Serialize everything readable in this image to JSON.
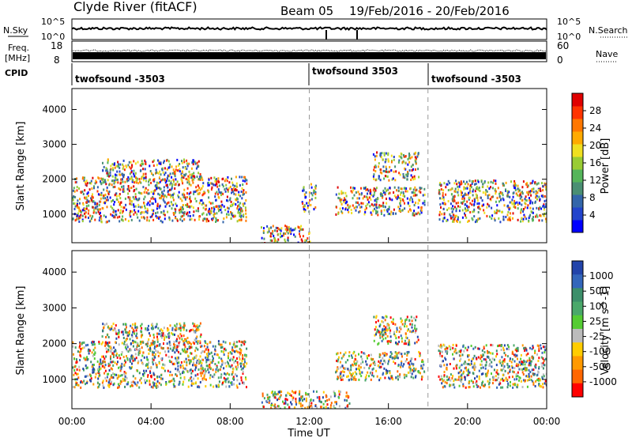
{
  "header": {
    "station": "Clyde River (fitACF)",
    "beam": "Beam 05",
    "date_range": "19/Feb/2016 - 20/Feb/2016"
  },
  "top_panels": {
    "nsky_label": "N.Sky",
    "nsearch_label": "N.Search",
    "freq_label_1": "Freq.",
    "freq_label_2": "[MHz]",
    "nave_label": "Nave",
    "cpid_label": "CPID",
    "noise_left_ticks": [
      "10^5",
      "10^0"
    ],
    "noise_right_ticks": [
      "10^5",
      "10^0"
    ],
    "freq_ticks": [
      "18",
      "8"
    ],
    "nave_ticks": [
      "60",
      "0"
    ],
    "cpid_segments": [
      {
        "label": "twofsound -3503",
        "start_hour": 0
      },
      {
        "label": "twofsound 3503",
        "start_hour": 12
      },
      {
        "label": "twofsound -3503",
        "start_hour": 18
      }
    ]
  },
  "chart_data": [
    {
      "type": "heatmap",
      "title": "Power",
      "ylabel": "Slant Range [km]",
      "xlabel": "",
      "ylim": [
        180,
        4600
      ],
      "xlim_hours": [
        0,
        24
      ],
      "y_ticks": [
        1000,
        2000,
        3000,
        4000
      ],
      "colorbar_label": "Power [dB]",
      "colorbar_ticks": [
        "4",
        "8",
        "12",
        "16",
        "20",
        "24",
        "28"
      ],
      "colorbar_colors": [
        "#0000ff",
        "#2244cc",
        "#3366aa",
        "#4a8f73",
        "#55b55a",
        "#99cc33",
        "#f0e020",
        "#ffaa00",
        "#ff7700",
        "#ff3300",
        "#e00000"
      ],
      "scatter_regions": [
        {
          "x": [
            0.0,
            8.8
          ],
          "y": [
            800,
            2100
          ]
        },
        {
          "x": [
            1.5,
            6.5
          ],
          "y": [
            2000,
            2600
          ]
        },
        {
          "x": [
            11.6,
            12.3
          ],
          "y": [
            1100,
            1900
          ]
        },
        {
          "x": [
            13.3,
            17.8
          ],
          "y": [
            1000,
            1800
          ]
        },
        {
          "x": [
            15.2,
            17.5
          ],
          "y": [
            2000,
            2800
          ]
        },
        {
          "x": [
            18.5,
            24.0
          ],
          "y": [
            800,
            2000
          ]
        },
        {
          "x": [
            9.5,
            12.0
          ],
          "y": [
            180,
            700
          ]
        }
      ]
    },
    {
      "type": "heatmap",
      "title": "Velocity",
      "ylabel": "Slant Range [km]",
      "xlabel": "Time UT",
      "ylim": [
        180,
        4600
      ],
      "xlim_hours": [
        0,
        24
      ],
      "y_ticks": [
        1000,
        2000,
        3000,
        4000
      ],
      "x_ticks": [
        "00:00",
        "04:00",
        "08:00",
        "12:00",
        "16:00",
        "20:00",
        "00:00"
      ],
      "colorbar_label": "Velocity [m s^-1]",
      "colorbar_ticks": [
        "1000",
        "500",
        "100",
        "25",
        "-25",
        "-100",
        "-500",
        "-1000"
      ],
      "colorbar_colors": [
        "#2244aa",
        "#3366bb",
        "#3c8f6a",
        "#4aa86a",
        "#55cc33",
        "#bbbbbb",
        "#ffcc00",
        "#ff9900",
        "#ff6600",
        "#ff0000"
      ],
      "scatter_regions": [
        {
          "x": [
            0.0,
            8.8
          ],
          "y": [
            800,
            2100
          ]
        },
        {
          "x": [
            1.5,
            6.5
          ],
          "y": [
            2000,
            2600
          ]
        },
        {
          "x": [
            13.3,
            17.8
          ],
          "y": [
            1000,
            1800
          ]
        },
        {
          "x": [
            15.2,
            17.5
          ],
          "y": [
            2000,
            2800
          ]
        },
        {
          "x": [
            18.5,
            24.0
          ],
          "y": [
            800,
            2000
          ]
        },
        {
          "x": [
            9.5,
            14.0
          ],
          "y": [
            180,
            700
          ]
        }
      ]
    }
  ],
  "colors": {
    "axis": "#000000",
    "dashed_marker": "#999999"
  }
}
